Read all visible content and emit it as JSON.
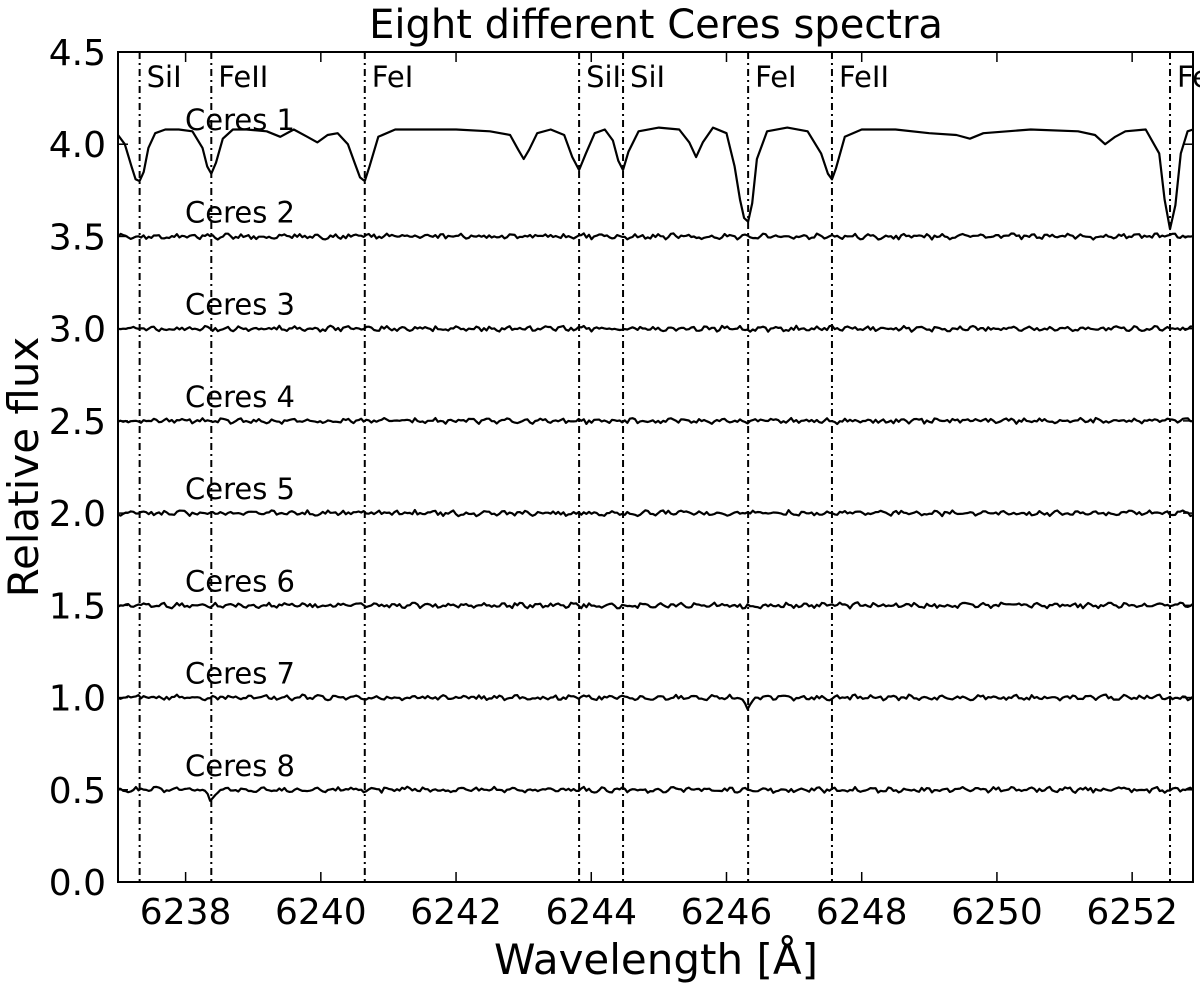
{
  "chart_data": {
    "type": "line",
    "title": "Eight different Ceres spectra",
    "xlabel": "Wavelength [Å]",
    "ylabel": "Relative flux",
    "xlim": [
      6237.0,
      6252.9
    ],
    "ylim": [
      0.0,
      4.5
    ],
    "xticks": [
      6238,
      6240,
      6242,
      6244,
      6246,
      6248,
      6250,
      6252
    ],
    "yticks": [
      "0.0",
      "0.5",
      "1.0",
      "1.5",
      "2.0",
      "2.5",
      "3.0",
      "3.5",
      "4.0",
      "4.5"
    ],
    "grid": false,
    "line_color": "#000000",
    "reference_lines": [
      {
        "wavelength": 6237.32,
        "label": "SiI"
      },
      {
        "wavelength": 6238.38,
        "label": "FeII"
      },
      {
        "wavelength": 6240.65,
        "label": "FeI"
      },
      {
        "wavelength": 6243.82,
        "label": "SiI"
      },
      {
        "wavelength": 6244.47,
        "label": "SiI"
      },
      {
        "wavelength": 6246.32,
        "label": "FeI"
      },
      {
        "wavelength": 6247.56,
        "label": "FeII"
      },
      {
        "wavelength": 6252.56,
        "label": "FeI"
      }
    ],
    "series": [
      {
        "name": "Ceres 1",
        "x": [
          6237.0,
          6237.1,
          6237.2,
          6237.26,
          6237.32,
          6237.38,
          6237.45,
          6237.55,
          6237.7,
          6237.9,
          6238.1,
          6238.25,
          6238.32,
          6238.38,
          6238.45,
          6238.55,
          6238.7,
          6238.9,
          6239.2,
          6239.4,
          6239.6,
          6239.8,
          6239.95,
          6240.1,
          6240.25,
          6240.4,
          6240.5,
          6240.58,
          6240.65,
          6240.72,
          6240.85,
          6241.1,
          6241.5,
          6242.0,
          6242.5,
          6242.8,
          6242.92,
          6243.0,
          6243.08,
          6243.2,
          6243.4,
          6243.6,
          6243.72,
          6243.82,
          6243.92,
          6244.05,
          6244.2,
          6244.32,
          6244.4,
          6244.47,
          6244.55,
          6244.7,
          6245.0,
          6245.3,
          6245.45,
          6245.55,
          6245.65,
          6245.8,
          6246.0,
          6246.12,
          6246.2,
          6246.26,
          6246.32,
          6246.38,
          6246.45,
          6246.6,
          6246.9,
          6247.2,
          6247.4,
          6247.5,
          6247.56,
          6247.62,
          6247.75,
          6248.0,
          6248.5,
          6249.0,
          6249.4,
          6249.6,
          6249.8,
          6250.5,
          6251.2,
          6251.45,
          6251.6,
          6251.75,
          6251.9,
          6252.2,
          6252.4,
          6252.48,
          6252.56,
          6252.64,
          6252.72,
          6252.82,
          6252.9
        ],
        "y": [
          4.05,
          4.0,
          3.88,
          3.81,
          3.8,
          3.85,
          3.98,
          4.06,
          4.08,
          4.08,
          4.07,
          3.98,
          3.88,
          3.84,
          3.9,
          4.03,
          4.08,
          4.08,
          4.07,
          4.04,
          4.08,
          4.04,
          4.01,
          4.05,
          4.06,
          4.0,
          3.9,
          3.82,
          3.8,
          3.88,
          4.04,
          4.08,
          4.08,
          4.08,
          4.07,
          4.05,
          3.97,
          3.92,
          3.97,
          4.06,
          4.08,
          4.05,
          3.93,
          3.86,
          3.95,
          4.06,
          4.08,
          4.02,
          3.91,
          3.86,
          3.96,
          4.07,
          4.09,
          4.08,
          4.01,
          3.93,
          4.01,
          4.09,
          4.06,
          3.88,
          3.7,
          3.6,
          3.58,
          3.68,
          3.92,
          4.07,
          4.09,
          4.07,
          3.95,
          3.84,
          3.81,
          3.87,
          4.04,
          4.08,
          4.08,
          4.06,
          4.05,
          4.03,
          4.06,
          4.08,
          4.07,
          4.05,
          4.0,
          4.04,
          4.07,
          4.08,
          3.95,
          3.7,
          3.54,
          3.67,
          3.95,
          4.07,
          4.08
        ]
      },
      {
        "name": "Ceres 2",
        "level": 3.5,
        "features": []
      },
      {
        "name": "Ceres 3",
        "level": 3.0,
        "features": []
      },
      {
        "name": "Ceres 4",
        "level": 2.5,
        "features": []
      },
      {
        "name": "Ceres 5",
        "level": 2.0,
        "features": []
      },
      {
        "name": "Ceres 6",
        "level": 1.5,
        "features": []
      },
      {
        "name": "Ceres 7",
        "level": 1.0,
        "features": [
          {
            "x": 6246.32,
            "depth": 0.07
          }
        ]
      },
      {
        "name": "Ceres 8",
        "level": 0.5,
        "features": [
          {
            "x": 6238.38,
            "depth": 0.07
          }
        ]
      }
    ]
  }
}
